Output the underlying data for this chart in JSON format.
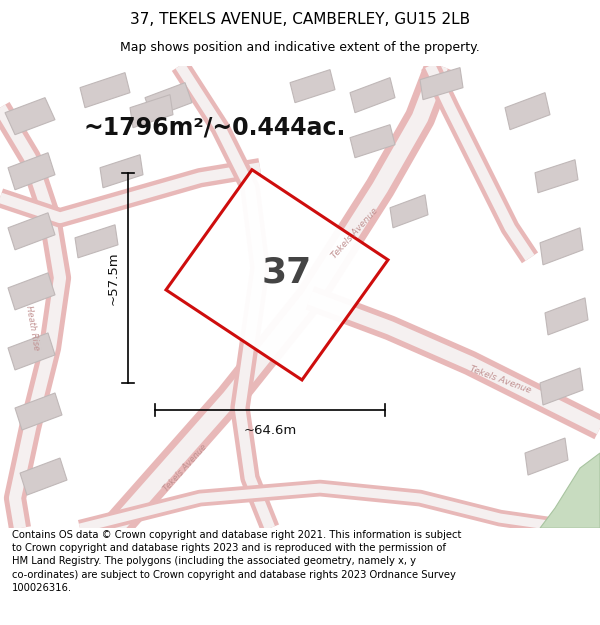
{
  "title": "37, TEKELS AVENUE, CAMBERLEY, GU15 2LB",
  "subtitle": "Map shows position and indicative extent of the property.",
  "area_text": "~1796m²/~0.444ac.",
  "plot_number": "37",
  "width_label": "~64.6m",
  "height_label": "~57.5m",
  "footer_text": "Contains OS data © Crown copyright and database right 2021. This information is subject to Crown copyright and database rights 2023 and is reproduced with the permission of HM Land Registry. The polygons (including the associated geometry, namely x, y co-ordinates) are subject to Crown copyright and database rights 2023 Ordnance Survey 100026316.",
  "map_bg": "#f5f0f0",
  "plot_outline_color": "#cc0000",
  "road_outline_color": "#e8b8b8",
  "road_center_color": "#f5f0f0",
  "building_color": "#d4cccc",
  "building_edge_color": "#c0b8b8",
  "green_color": "#c8dcc0",
  "title_fontsize": 11,
  "subtitle_fontsize": 9,
  "area_fontsize": 17,
  "plot_num_fontsize": 26,
  "label_fontsize": 9.5,
  "footer_fontsize": 7.2,
  "road_label_color": "#c09090",
  "road_label_size": 6.5
}
